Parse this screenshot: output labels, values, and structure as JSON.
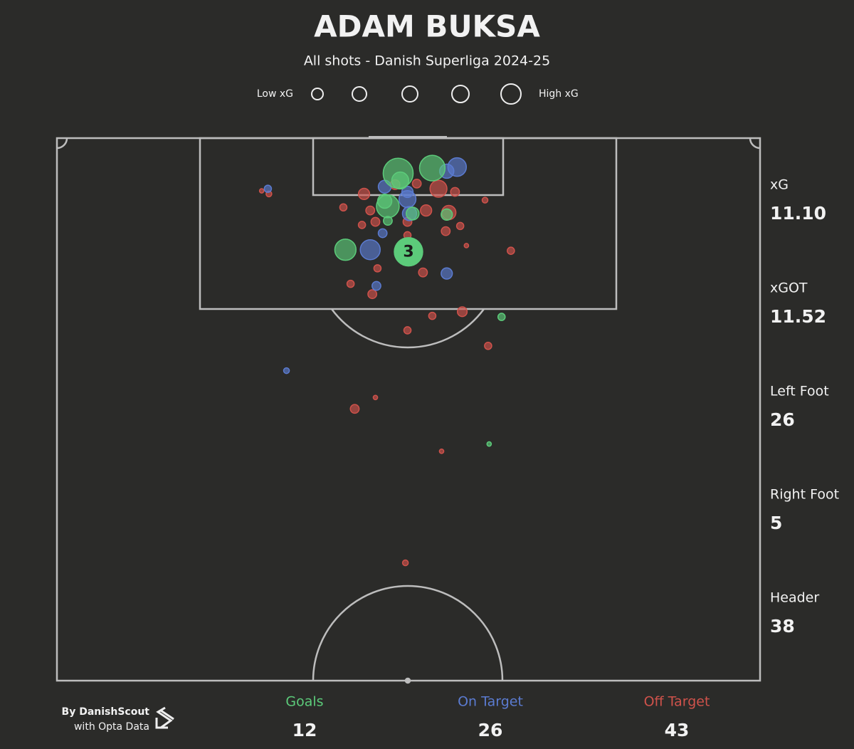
{
  "chart_data": {
    "type": "scatter",
    "title": "ADAM BUKSA",
    "subtitle": "All shots - Danish Superliga 2024-25",
    "size_legend": {
      "low": "Low xG",
      "high": "High xG"
    },
    "xlim": [
      0,
      68
    ],
    "ylim": [
      0,
      52.5
    ],
    "series": [
      {
        "name": "Goals",
        "color": "#5ccb7a",
        "total": 12,
        "x": [
          33.0,
          36.3,
          33.2,
          32.0,
          31.7,
          34.4,
          37.7,
          32.0,
          27.9,
          34.0,
          43.0,
          41.8
        ],
        "values": [
          3.4,
          2.9,
          4.1,
          6.6,
          6.1,
          7.3,
          7.4,
          8.0,
          10.8,
          11.0,
          17.3,
          29.6
        ],
        "sizes": [
          0.63,
          0.44,
          0.17,
          0.34,
          0.11,
          0.085,
          0.06,
          0.03,
          0.29,
          0.56,
          0.016,
          0.002
        ],
        "point_labels": [
          null,
          null,
          null,
          null,
          null,
          null,
          null,
          null,
          null,
          "3",
          null,
          null
        ]
      },
      {
        "name": "On Target",
        "color": "#5b7bd0",
        "total": 26,
        "x": [
          38.7,
          37.7,
          31.7,
          33.9,
          34.1,
          30.3,
          31.5,
          37.7,
          30.9,
          20.4,
          22.2,
          33.9
        ],
        "values": [
          2.8,
          3.2,
          4.7,
          5.9,
          7.3,
          10.8,
          9.2,
          13.1,
          14.3,
          4.9,
          22.5,
          5.2
        ],
        "sizes": [
          0.21,
          0.11,
          0.085,
          0.17,
          0.11,
          0.25,
          0.03,
          0.06,
          0.03,
          0.016,
          0.007,
          0.06
        ]
      },
      {
        "name": "Off Target",
        "color": "#cf524b",
        "total": 43,
        "x": [
          19.8,
          20.5,
          29.7,
          27.7,
          36.9,
          38.5,
          41.4,
          35.7,
          37.9,
          30.3,
          30.8,
          29.5,
          33.9,
          33.9,
          37.6,
          39.0,
          32.7,
          34.8,
          39.6,
          43.9,
          31.0,
          35.4,
          28.4,
          30.5,
          36.3,
          39.2,
          33.9,
          41.7,
          30.8,
          28.8,
          37.2,
          33.7
        ],
        "values": [
          5.1,
          5.4,
          5.4,
          6.7,
          4.9,
          5.2,
          6.0,
          7.0,
          7.2,
          7.0,
          8.1,
          8.4,
          8.1,
          9.4,
          9.0,
          8.5,
          4.5,
          4.4,
          10.4,
          10.9,
          12.6,
          13.0,
          14.1,
          15.1,
          17.2,
          16.8,
          18.6,
          20.1,
          25.1,
          26.2,
          30.3,
          41.1
        ],
        "sizes": [
          0.002,
          0.007,
          0.06,
          0.016,
          0.17,
          0.03,
          0.007,
          0.06,
          0.11,
          0.03,
          0.03,
          0.016,
          0.03,
          0.016,
          0.03,
          0.016,
          0.04,
          0.03,
          0.002,
          0.016,
          0.016,
          0.03,
          0.016,
          0.03,
          0.016,
          0.04,
          0.016,
          0.016,
          0.002,
          0.03,
          0.002,
          0.007
        ]
      }
    ]
  },
  "stats": [
    {
      "label": "xG",
      "value": "11.10"
    },
    {
      "label": "xGOT",
      "value": "11.52"
    },
    {
      "label": "Left Foot",
      "value": "26"
    },
    {
      "label": "Right Foot",
      "value": "5"
    },
    {
      "label": "Header",
      "value": "38"
    }
  ],
  "credits": {
    "by": "By DanishScout",
    "source": "with Opta Data"
  }
}
